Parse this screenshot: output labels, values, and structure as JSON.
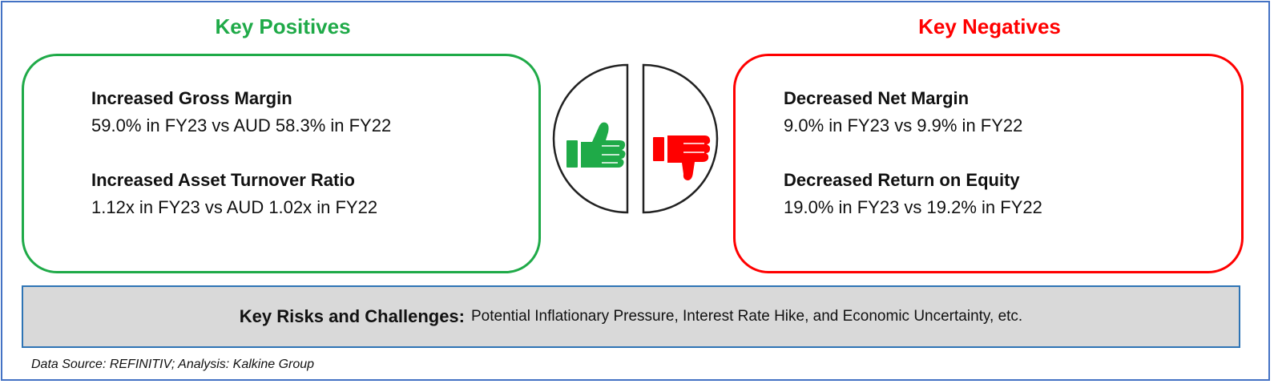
{
  "positives": {
    "heading": "Key Positives",
    "items": [
      {
        "title": "Increased Gross Margin",
        "detail": "59.0% in FY23 vs AUD 58.3% in FY22"
      },
      {
        "title": "Increased Asset Turnover Ratio",
        "detail": "1.12x in FY23 vs AUD 1.02x in FY22"
      }
    ]
  },
  "negatives": {
    "heading": "Key Negatives",
    "items": [
      {
        "title": "Decreased Net Margin",
        "detail": "9.0% in FY23 vs 9.9% in FY22"
      },
      {
        "title": "Decreased Return on Equity",
        "detail": "19.0% in FY23 vs 19.2% in FY22"
      }
    ]
  },
  "risks": {
    "label": "Key Risks and Challenges:",
    "value": "Potential Inflationary Pressure, Interest Rate Hike, and Economic Uncertainty, etc."
  },
  "footer": {
    "source": "Data Source: REFINITIV; Analysis: Kalkine Group"
  },
  "colors": {
    "positive": "#1faa48",
    "negative": "#ff0000",
    "frame": "#4472c4",
    "risk_background": "#d9d9d9",
    "risk_border": "#2e74b5"
  },
  "icons": {
    "positive": "thumbs-up-icon",
    "negative": "thumbs-down-icon"
  }
}
